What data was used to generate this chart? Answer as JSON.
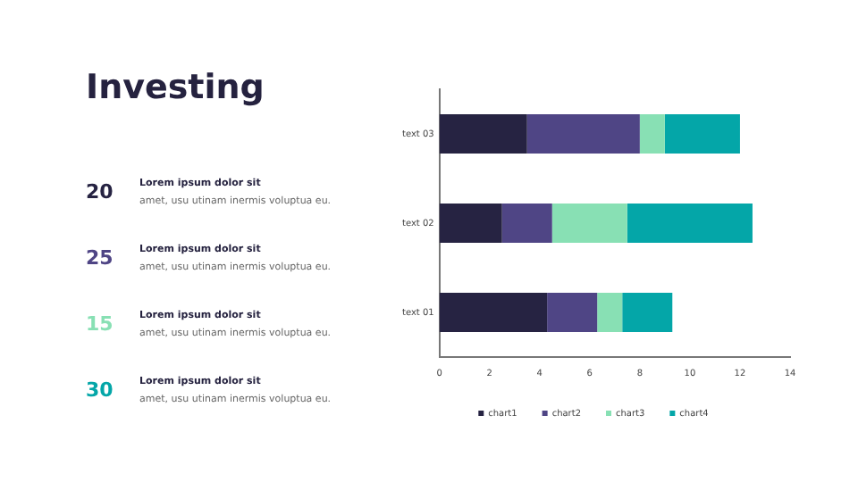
{
  "chart_data": {
    "type": "bar",
    "title": "Investing",
    "orientation": "horizontal",
    "stacked": true,
    "categories": [
      "text 03",
      "text 02",
      "text 01"
    ],
    "series": [
      {
        "name": "chart1",
        "color": "#262342",
        "values": [
          3.5,
          2.5,
          4.3
        ]
      },
      {
        "name": "chart2",
        "color": "#4f4585",
        "values": [
          4.5,
          2,
          2
        ]
      },
      {
        "name": "chart3",
        "color": "#88e0b4",
        "values": [
          1,
          3,
          1
        ]
      },
      {
        "name": "chart4",
        "color": "#04a6a8",
        "values": [
          3,
          5,
          2
        ]
      }
    ],
    "xlim": [
      0,
      14
    ],
    "xticks": [
      0,
      2,
      4,
      6,
      8,
      10,
      12,
      14
    ],
    "grid": false,
    "legend": "bottom",
    "annotations": [
      "20",
      "Lorem ipsum dolor sit",
      "amet, usu utinam inermis voluptua eu.",
      "25",
      "Lorem ipsum dolor sit",
      "amet, usu utinam inermis voluptua eu.",
      "15",
      "Lorem ipsum dolor sit",
      "amet, usu utinam inermis voluptua eu.",
      "30",
      "Lorem ipsum dolor sit",
      "amet, usu utinam inermis voluptua eu."
    ]
  }
}
